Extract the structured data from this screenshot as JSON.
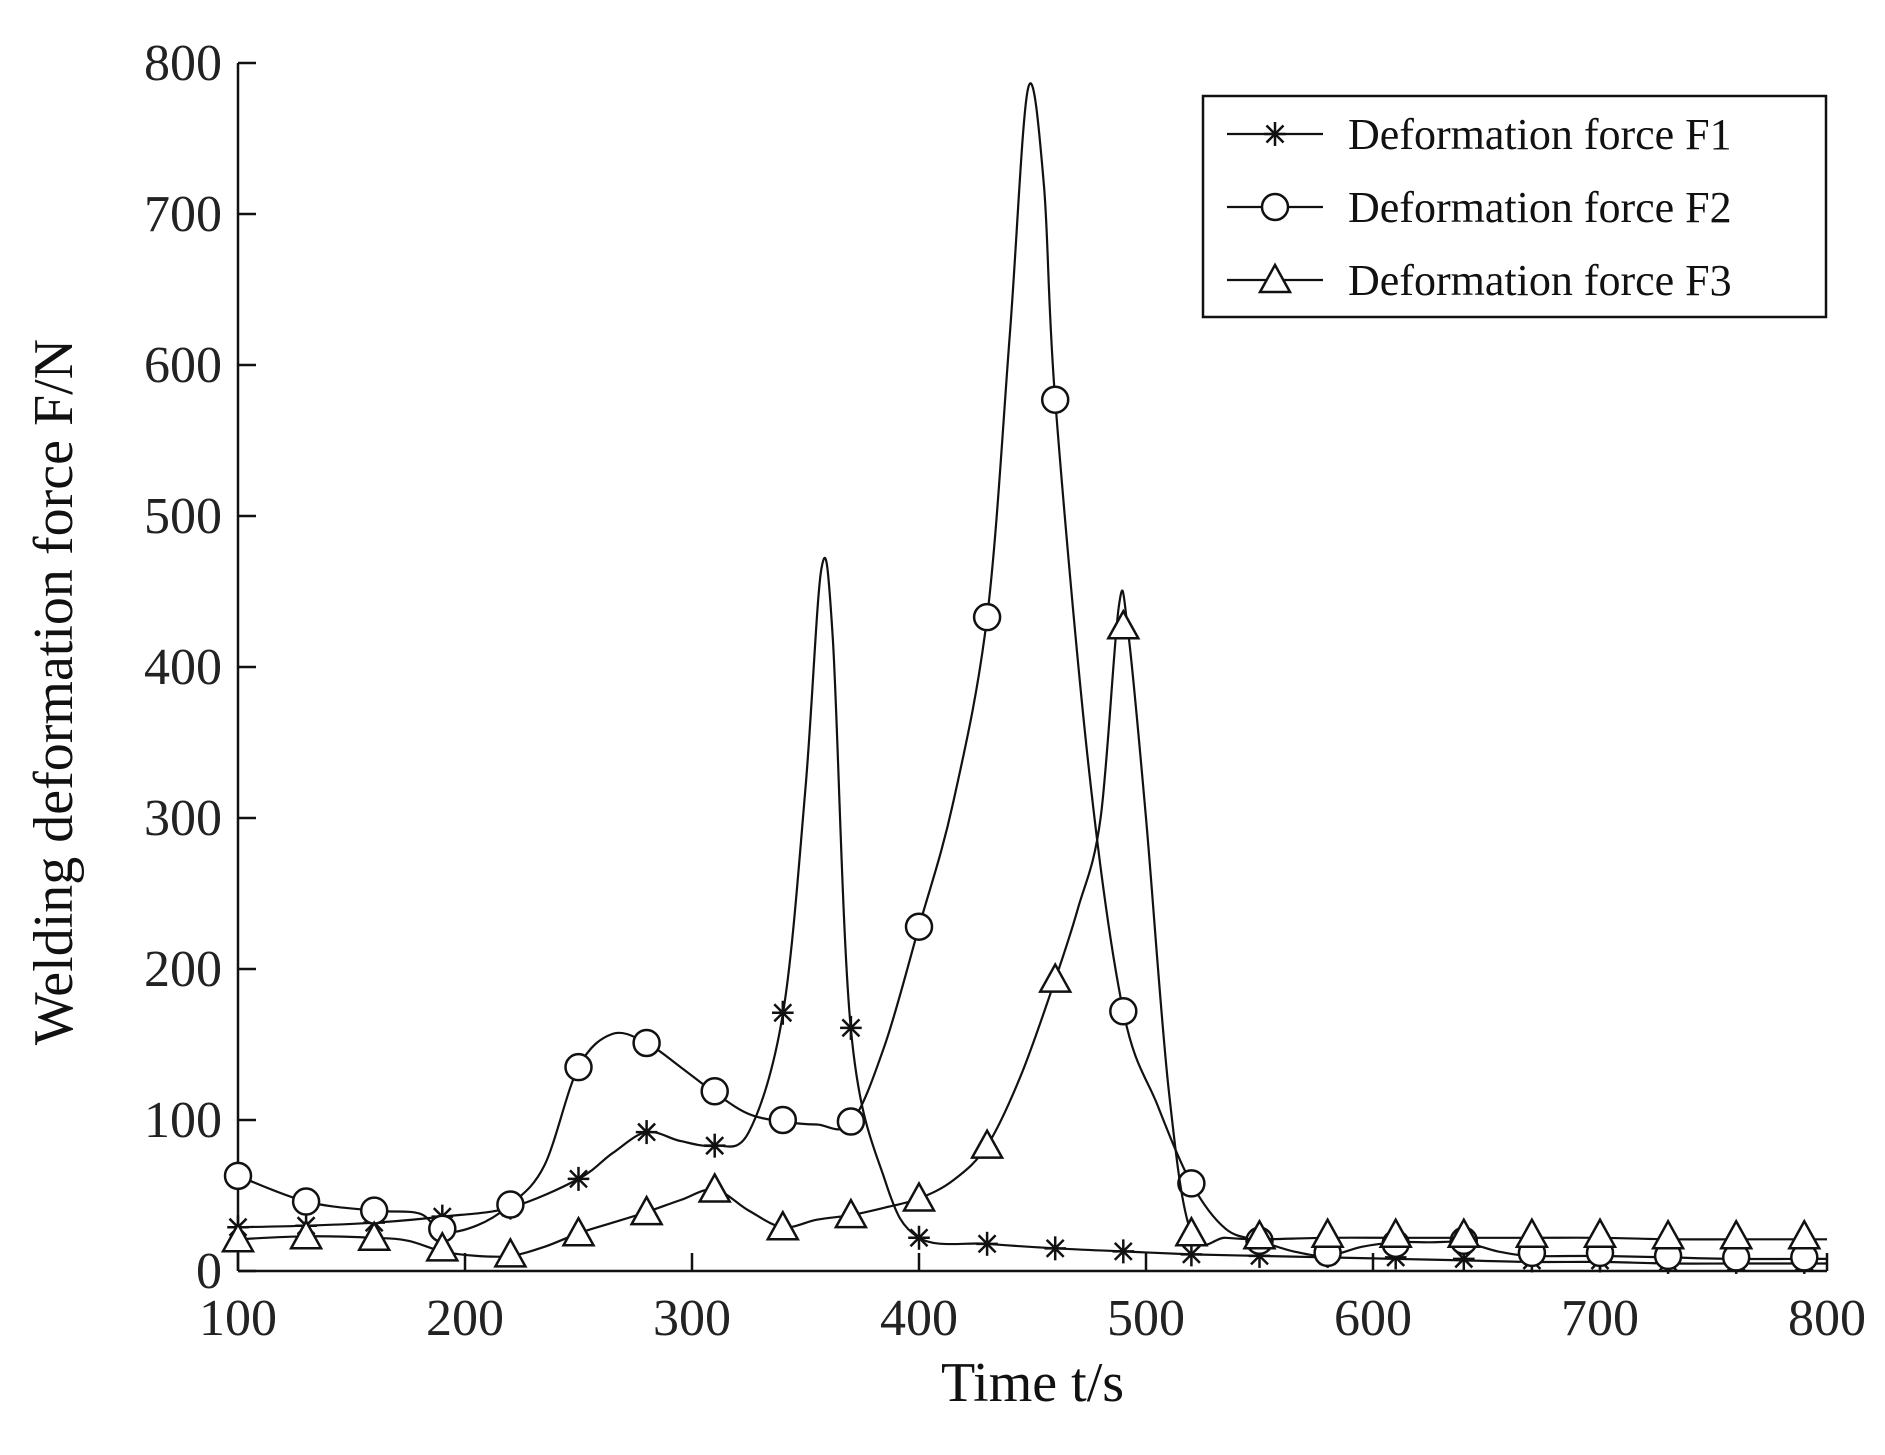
{
  "chart_data": {
    "type": "line",
    "title": "",
    "xlabel": "Time t/s",
    "ylabel": "Welding deformation force F/N",
    "xlim": [
      100,
      800
    ],
    "ylim": [
      0,
      800
    ],
    "xticks": [
      100,
      200,
      300,
      400,
      500,
      600,
      700,
      800
    ],
    "yticks": [
      0,
      100,
      200,
      300,
      400,
      500,
      600,
      700,
      800
    ],
    "grid": false,
    "legend_position": "top-right",
    "color": "#111111",
    "series": [
      {
        "name": "Deformation force F1",
        "marker": "asterisk",
        "curve": [
          [
            100,
            29
          ],
          [
            130,
            30
          ],
          [
            160,
            32
          ],
          [
            190,
            36
          ],
          [
            220,
            42
          ],
          [
            250,
            61
          ],
          [
            265,
            78
          ],
          [
            280,
            92
          ],
          [
            295,
            86
          ],
          [
            310,
            83
          ],
          [
            325,
            92
          ],
          [
            340,
            170
          ],
          [
            350,
            320
          ],
          [
            357,
            465
          ],
          [
            362,
            420
          ],
          [
            370,
            160
          ],
          [
            385,
            60
          ],
          [
            400,
            22
          ],
          [
            430,
            18
          ],
          [
            460,
            15
          ],
          [
            490,
            13
          ],
          [
            520,
            11
          ],
          [
            550,
            10
          ],
          [
            580,
            9
          ],
          [
            610,
            8
          ],
          [
            640,
            7
          ],
          [
            670,
            6
          ],
          [
            700,
            6
          ],
          [
            730,
            5
          ],
          [
            760,
            5
          ],
          [
            790,
            5
          ],
          [
            800,
            5
          ]
        ],
        "markers": [
          [
            100,
            29
          ],
          [
            130,
            30
          ],
          [
            160,
            32
          ],
          [
            190,
            36
          ],
          [
            220,
            42
          ],
          [
            250,
            61
          ],
          [
            280,
            92
          ],
          [
            310,
            83
          ],
          [
            340,
            171
          ],
          [
            370,
            161
          ],
          [
            400,
            22
          ],
          [
            430,
            18
          ],
          [
            460,
            15
          ],
          [
            490,
            13
          ],
          [
            520,
            11
          ],
          [
            550,
            10
          ],
          [
            580,
            10
          ],
          [
            610,
            9
          ],
          [
            640,
            8
          ],
          [
            670,
            7
          ],
          [
            700,
            7
          ],
          [
            730,
            6
          ],
          [
            760,
            6
          ],
          [
            790,
            6
          ]
        ]
      },
      {
        "name": "Deformation force F2",
        "marker": "circle",
        "curve": [
          [
            100,
            63
          ],
          [
            130,
            46
          ],
          [
            160,
            40
          ],
          [
            180,
            38
          ],
          [
            190,
            26
          ],
          [
            205,
            30
          ],
          [
            220,
            44
          ],
          [
            235,
            70
          ],
          [
            250,
            135
          ],
          [
            265,
            157
          ],
          [
            280,
            151
          ],
          [
            295,
            135
          ],
          [
            310,
            118
          ],
          [
            325,
            104
          ],
          [
            340,
            99
          ],
          [
            355,
            97
          ],
          [
            370,
            98
          ],
          [
            385,
            150
          ],
          [
            400,
            228
          ],
          [
            415,
            310
          ],
          [
            430,
            433
          ],
          [
            440,
            620
          ],
          [
            448,
            783
          ],
          [
            455,
            720
          ],
          [
            460,
            577
          ],
          [
            475,
            330
          ],
          [
            490,
            172
          ],
          [
            505,
            110
          ],
          [
            520,
            58
          ],
          [
            535,
            28
          ],
          [
            550,
            20
          ],
          [
            565,
            13
          ],
          [
            580,
            10
          ],
          [
            595,
            16
          ],
          [
            610,
            19
          ],
          [
            625,
            19
          ],
          [
            640,
            19
          ],
          [
            655,
            13
          ],
          [
            670,
            10
          ],
          [
            700,
            10
          ],
          [
            730,
            9
          ],
          [
            760,
            8
          ],
          [
            790,
            8
          ],
          [
            800,
            8
          ]
        ],
        "markers": [
          [
            100,
            63
          ],
          [
            130,
            46
          ],
          [
            160,
            40
          ],
          [
            190,
            28
          ],
          [
            220,
            44
          ],
          [
            250,
            135
          ],
          [
            280,
            151
          ],
          [
            310,
            119
          ],
          [
            340,
            100
          ],
          [
            370,
            99
          ],
          [
            400,
            228
          ],
          [
            430,
            433
          ],
          [
            460,
            577
          ],
          [
            490,
            172
          ],
          [
            520,
            58
          ],
          [
            550,
            20
          ],
          [
            580,
            12
          ],
          [
            610,
            18
          ],
          [
            640,
            20
          ],
          [
            670,
            12
          ],
          [
            700,
            12
          ],
          [
            730,
            10
          ],
          [
            760,
            9
          ],
          [
            790,
            9
          ]
        ]
      },
      {
        "name": "Deformation force F3",
        "marker": "triangle",
        "curve": [
          [
            100,
            21
          ],
          [
            130,
            23
          ],
          [
            160,
            22
          ],
          [
            175,
            20
          ],
          [
            190,
            13
          ],
          [
            205,
            10
          ],
          [
            220,
            10
          ],
          [
            235,
            16
          ],
          [
            250,
            25
          ],
          [
            265,
            32
          ],
          [
            280,
            39
          ],
          [
            295,
            47
          ],
          [
            310,
            54
          ],
          [
            325,
            40
          ],
          [
            340,
            29
          ],
          [
            355,
            34
          ],
          [
            370,
            37
          ],
          [
            385,
            42
          ],
          [
            400,
            48
          ],
          [
            415,
            60
          ],
          [
            430,
            83
          ],
          [
            445,
            130
          ],
          [
            460,
            193
          ],
          [
            470,
            240
          ],
          [
            480,
            300
          ],
          [
            488,
            440
          ],
          [
            492,
            425
          ],
          [
            500,
            300
          ],
          [
            510,
            120
          ],
          [
            520,
            25
          ],
          [
            535,
            22
          ],
          [
            550,
            21
          ],
          [
            580,
            22
          ],
          [
            610,
            22
          ],
          [
            640,
            22
          ],
          [
            670,
            22
          ],
          [
            700,
            22
          ],
          [
            730,
            21
          ],
          [
            760,
            21
          ],
          [
            790,
            21
          ],
          [
            800,
            21
          ]
        ],
        "markers": [
          [
            100,
            21
          ],
          [
            130,
            23
          ],
          [
            160,
            22
          ],
          [
            190,
            15
          ],
          [
            220,
            11
          ],
          [
            250,
            25
          ],
          [
            280,
            39
          ],
          [
            310,
            54
          ],
          [
            340,
            29
          ],
          [
            370,
            37
          ],
          [
            400,
            48
          ],
          [
            430,
            83
          ],
          [
            460,
            193
          ],
          [
            490,
            427
          ],
          [
            520,
            25
          ],
          [
            550,
            23
          ],
          [
            580,
            24
          ],
          [
            610,
            24
          ],
          [
            640,
            24
          ],
          [
            670,
            24
          ],
          [
            700,
            24
          ],
          [
            730,
            23
          ],
          [
            760,
            23
          ],
          [
            790,
            23
          ]
        ]
      }
    ]
  }
}
